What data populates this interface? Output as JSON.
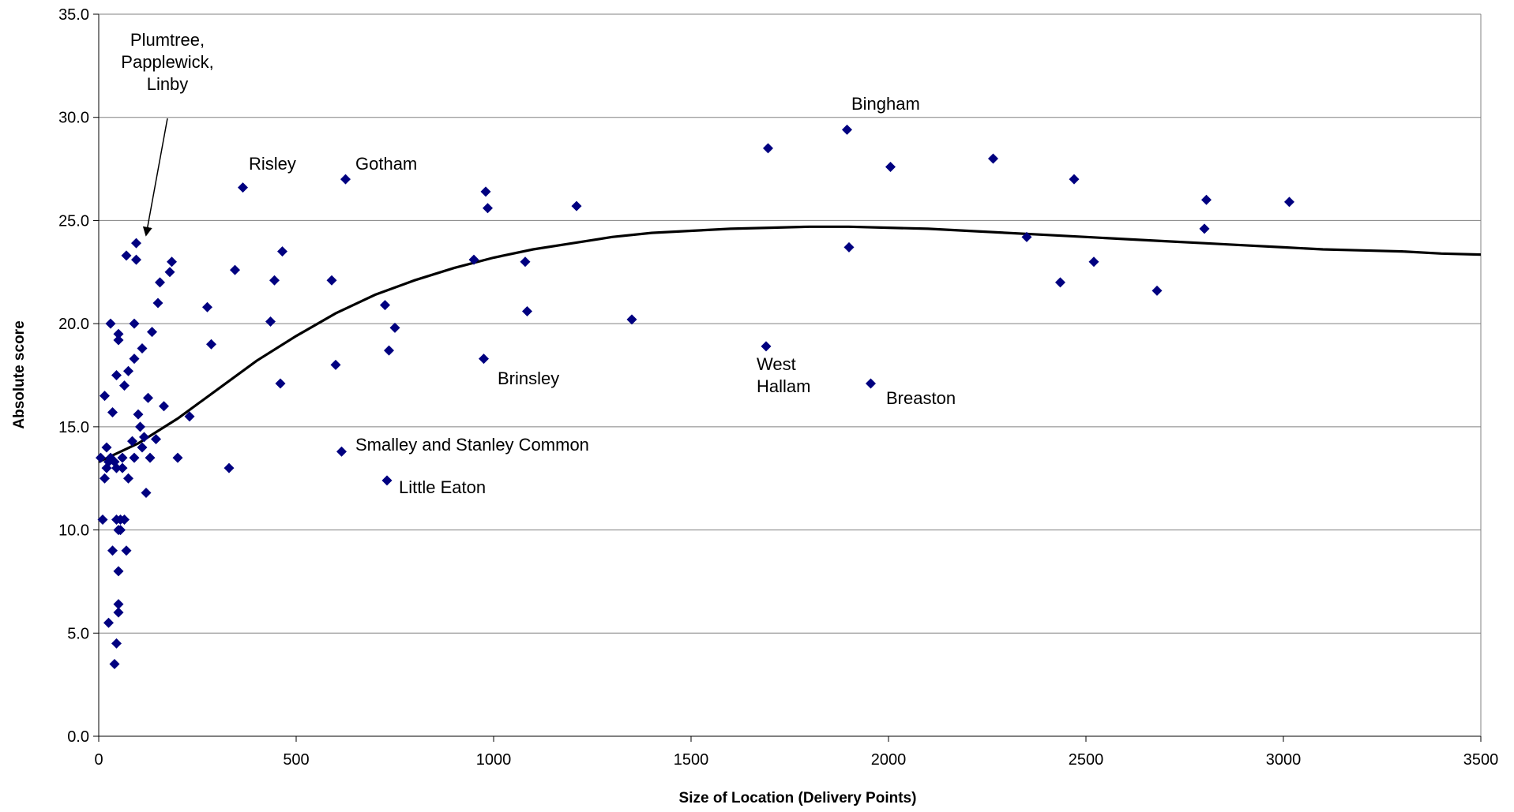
{
  "chart_data": {
    "type": "scatter",
    "xlabel": "Size of Location (Delivery Points)",
    "ylabel": "Absolute score",
    "xlim": [
      0,
      3500
    ],
    "ylim": [
      0,
      35
    ],
    "x_ticks": [
      0,
      500,
      1000,
      1500,
      2000,
      2500,
      3000,
      3500
    ],
    "x_tick_labels": [
      "0",
      "500",
      "1000",
      "1500",
      "2000",
      "2500",
      "3000",
      "3500"
    ],
    "y_ticks": [
      0,
      5,
      10,
      15,
      20,
      25,
      30,
      35
    ],
    "y_tick_labels": [
      "0.0",
      "5.0",
      "10.0",
      "15.0",
      "20.0",
      "25.0",
      "30.0",
      "35.0"
    ],
    "grid": "horizontal",
    "marker": "diamond",
    "colors": {
      "marker": "#000080",
      "trend": "#000000",
      "grid": "#808080"
    },
    "points": [
      [
        5,
        13.5
      ],
      [
        10,
        10.5
      ],
      [
        15,
        12.5
      ],
      [
        15,
        16.5
      ],
      [
        20,
        14
      ],
      [
        20,
        13
      ],
      [
        25,
        13.3
      ],
      [
        25,
        5.5
      ],
      [
        30,
        20
      ],
      [
        30,
        13.5
      ],
      [
        35,
        15.7
      ],
      [
        35,
        9
      ],
      [
        40,
        13.3
      ],
      [
        40,
        3.5
      ],
      [
        45,
        17.5
      ],
      [
        45,
        13
      ],
      [
        45,
        4.5
      ],
      [
        45,
        10.5
      ],
      [
        50,
        19.5
      ],
      [
        50,
        19.2
      ],
      [
        50,
        10
      ],
      [
        50,
        8
      ],
      [
        50,
        6.4
      ],
      [
        50,
        6
      ],
      [
        55,
        10
      ],
      [
        55,
        10.5
      ],
      [
        60,
        13.5
      ],
      [
        60,
        13
      ],
      [
        65,
        17
      ],
      [
        65,
        10.5
      ],
      [
        70,
        23.3
      ],
      [
        70,
        9
      ],
      [
        75,
        17.7
      ],
      [
        75,
        12.5
      ],
      [
        85,
        14.3
      ],
      [
        90,
        18.3
      ],
      [
        90,
        20
      ],
      [
        90,
        13.5
      ],
      [
        95,
        23.1
      ],
      [
        95,
        23.9
      ],
      [
        100,
        15.6
      ],
      [
        105,
        15
      ],
      [
        110,
        14
      ],
      [
        110,
        18.8
      ],
      [
        115,
        14.5
      ],
      [
        120,
        11.8
      ],
      [
        125,
        16.4
      ],
      [
        130,
        13.5
      ],
      [
        135,
        19.6
      ],
      [
        145,
        14.4
      ],
      [
        150,
        21
      ],
      [
        155,
        22
      ],
      [
        165,
        16
      ],
      [
        180,
        22.5
      ],
      [
        185,
        23
      ],
      [
        200,
        13.5
      ],
      [
        230,
        15.5
      ],
      [
        275,
        20.8
      ],
      [
        285,
        19
      ],
      [
        330,
        13
      ],
      [
        345,
        22.6
      ],
      [
        365,
        26.6
      ],
      [
        435,
        20.1
      ],
      [
        445,
        22.1
      ],
      [
        460,
        17.1
      ],
      [
        465,
        23.5
      ],
      [
        590,
        22.1
      ],
      [
        600,
        18
      ],
      [
        615,
        13.8
      ],
      [
        625,
        27
      ],
      [
        725,
        20.9
      ],
      [
        730,
        12.4
      ],
      [
        735,
        18.7
      ],
      [
        750,
        19.8
      ],
      [
        950,
        23.1
      ],
      [
        975,
        18.3
      ],
      [
        980,
        26.4
      ],
      [
        985,
        25.6
      ],
      [
        1080,
        23
      ],
      [
        1085,
        20.6
      ],
      [
        1210,
        25.7
      ],
      [
        1350,
        20.2
      ],
      [
        1690,
        18.9
      ],
      [
        1695,
        28.5
      ],
      [
        1895,
        29.4
      ],
      [
        1900,
        23.7
      ],
      [
        1955,
        17.1
      ],
      [
        2005,
        27.6
      ],
      [
        2265,
        28
      ],
      [
        2350,
        24.2
      ],
      [
        2435,
        22
      ],
      [
        2470,
        27
      ],
      [
        2520,
        23
      ],
      [
        2680,
        21.6
      ],
      [
        2800,
        24.6
      ],
      [
        2805,
        26
      ],
      [
        3015,
        25.9
      ]
    ],
    "trendline": {
      "type": "polynomial",
      "points": [
        [
          0,
          13.3
        ],
        [
          100,
          14.2
        ],
        [
          200,
          15.4
        ],
        [
          300,
          16.8
        ],
        [
          400,
          18.2
        ],
        [
          500,
          19.4
        ],
        [
          600,
          20.5
        ],
        [
          700,
          21.4
        ],
        [
          800,
          22.1
        ],
        [
          900,
          22.7
        ],
        [
          1000,
          23.2
        ],
        [
          1100,
          23.6
        ],
        [
          1200,
          23.9
        ],
        [
          1300,
          24.2
        ],
        [
          1400,
          24.4
        ],
        [
          1500,
          24.5
        ],
        [
          1600,
          24.6
        ],
        [
          1700,
          24.65
        ],
        [
          1800,
          24.7
        ],
        [
          1900,
          24.7
        ],
        [
          2000,
          24.65
        ],
        [
          2100,
          24.6
        ],
        [
          2200,
          24.5
        ],
        [
          2300,
          24.4
        ],
        [
          2400,
          24.3
        ],
        [
          2500,
          24.2
        ],
        [
          2600,
          24.1
        ],
        [
          2700,
          24.0
        ],
        [
          2800,
          23.9
        ],
        [
          2900,
          23.8
        ],
        [
          3000,
          23.7
        ],
        [
          3100,
          23.6
        ],
        [
          3200,
          23.55
        ],
        [
          3300,
          23.5
        ],
        [
          3400,
          23.4
        ],
        [
          3500,
          23.35
        ]
      ]
    },
    "annotations": [
      {
        "lines": [
          "Plumtree,",
          "Papplewick,",
          "Linby"
        ],
        "arrow_to": [
          120,
          24.3
        ]
      },
      {
        "lines": [
          "Risley"
        ]
      },
      {
        "lines": [
          "Gotham"
        ]
      },
      {
        "lines": [
          "Bingham"
        ]
      },
      {
        "lines": [
          "Brinsley"
        ]
      },
      {
        "lines": [
          "West",
          "Hallam"
        ]
      },
      {
        "lines": [
          "Breaston"
        ]
      },
      {
        "lines": [
          "Smalley and Stanley Common"
        ]
      },
      {
        "lines": [
          "Little Eaton"
        ]
      }
    ]
  }
}
